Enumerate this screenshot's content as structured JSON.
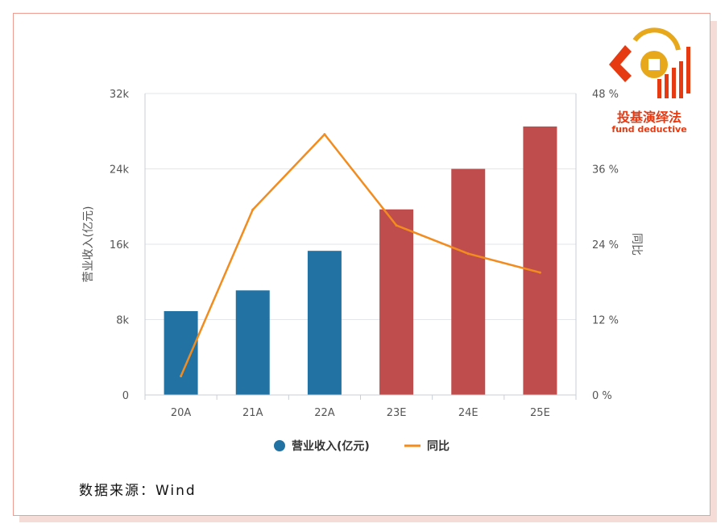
{
  "chart_data": {
    "type": "bar",
    "categories": [
      "20A",
      "21A",
      "22A",
      "23E",
      "24E",
      "25E"
    ],
    "series": [
      {
        "name": "营业收入(亿元)",
        "kind": "bar",
        "axis": "left",
        "values": [
          8900,
          11100,
          15300,
          19700,
          24000,
          28500
        ],
        "colors": [
          "#2273a3",
          "#2273a3",
          "#2273a3",
          "#c04d4d",
          "#c04d4d",
          "#c04d4d"
        ]
      },
      {
        "name": "同比",
        "kind": "line",
        "axis": "right",
        "values": [
          3,
          29.5,
          41.5,
          27,
          22.5,
          19.5
        ],
        "color": "#f28c1f"
      }
    ],
    "ylabel": "营业收入(亿元)",
    "ylabel_right": "同比",
    "ylim": [
      0,
      32000
    ],
    "y_ticks": [
      "0",
      "8k",
      "16k",
      "24k",
      "32k"
    ],
    "ylim_right": [
      0,
      48
    ],
    "y_ticks_right": [
      "0 %",
      "12 %",
      "24 %",
      "36 %",
      "48 %"
    ],
    "grid": true,
    "legend_position": "bottom"
  },
  "legend": {
    "bar_label": "营业收入(亿元)",
    "line_label": "同比"
  },
  "logo": {
    "cn": "投基演绎法",
    "en": "fund deductive"
  },
  "source": "数据来源：Wind"
}
